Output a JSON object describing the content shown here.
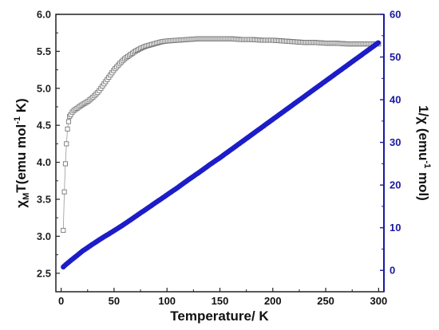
{
  "chart_data": {
    "type": "scatter",
    "title": "",
    "xlabel": "Temperature/ K",
    "ylabel_left": {
      "main": "χ",
      "sub": "M",
      "rest": "T(emu mol",
      "sup": "-1",
      "end": " K)"
    },
    "ylabel_right": {
      "main": "1/χ (emu",
      "sup": "-1",
      "end": " mol)"
    },
    "xlim": [
      -5,
      305
    ],
    "ylim_left": [
      2.25,
      6.0
    ],
    "ylim_right": [
      -5,
      60
    ],
    "x_ticks": [
      "0",
      "50",
      "100",
      "150",
      "200",
      "250",
      "300"
    ],
    "y_left_ticks": [
      "2.5",
      "3.0",
      "3.5",
      "4.0",
      "4.5",
      "5.0",
      "5.5",
      "6.0"
    ],
    "y_right_ticks": [
      "0",
      "10",
      "20",
      "30",
      "40",
      "50",
      "60"
    ],
    "colors": {
      "left_axis": "#222222",
      "right_axis": "#1a1aa0",
      "chi_t_marker": "#777777",
      "inv_chi_marker": "#1c1cc8"
    },
    "grid": false,
    "series": [
      {
        "axis": "left",
        "marker": "open-square",
        "x": [
          2,
          3,
          4,
          5,
          6,
          7,
          8,
          10,
          12,
          15,
          18,
          20,
          25,
          30,
          35,
          40,
          45,
          50,
          55,
          60,
          65,
          70,
          75,
          80,
          85,
          90,
          95,
          100,
          110,
          120,
          130,
          140,
          150,
          160,
          170,
          180,
          190,
          200,
          210,
          220,
          230,
          240,
          250,
          260,
          270,
          280,
          290,
          300
        ],
        "y": [
          3.08,
          3.6,
          3.98,
          4.25,
          4.45,
          4.55,
          4.62,
          4.67,
          4.7,
          4.73,
          4.76,
          4.78,
          4.82,
          4.88,
          4.95,
          5.05,
          5.15,
          5.25,
          5.33,
          5.4,
          5.45,
          5.5,
          5.54,
          5.57,
          5.59,
          5.61,
          5.63,
          5.64,
          5.65,
          5.66,
          5.67,
          5.67,
          5.67,
          5.67,
          5.66,
          5.66,
          5.65,
          5.65,
          5.64,
          5.63,
          5.62,
          5.62,
          5.61,
          5.61,
          5.6,
          5.6,
          5.6,
          5.6
        ]
      },
      {
        "axis": "right",
        "marker": "filled-circle",
        "x": [
          2,
          5,
          10,
          15,
          20,
          30,
          40,
          50,
          60,
          70,
          80,
          90,
          100,
          110,
          120,
          130,
          140,
          150,
          160,
          170,
          180,
          190,
          200,
          210,
          220,
          230,
          240,
          250,
          260,
          270,
          280,
          290,
          300
        ],
        "y": [
          0.8,
          1.5,
          2.5,
          3.5,
          4.5,
          6.2,
          7.8,
          9.3,
          10.9,
          12.6,
          14.3,
          16.0,
          17.7,
          19.4,
          21.2,
          22.9,
          24.7,
          26.4,
          28.2,
          30.0,
          31.8,
          33.6,
          35.4,
          37.2,
          39.0,
          40.8,
          42.6,
          44.4,
          46.2,
          48.0,
          49.8,
          51.6,
          53.4
        ]
      }
    ]
  }
}
